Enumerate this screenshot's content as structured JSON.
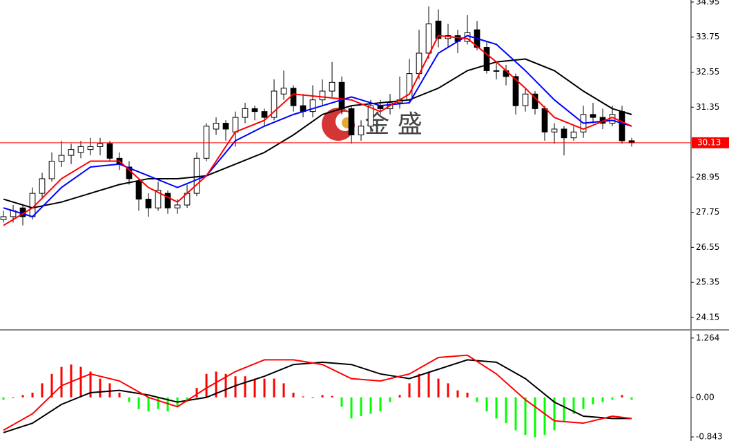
{
  "chart_data": [
    {
      "type": "candlestick",
      "xlim": [
        -0.36,
        71.07
      ],
      "ylim": [
        23.77,
        35.02
      ],
      "yticks": [
        34.95,
        33.75,
        32.55,
        31.35,
        28.95,
        27.75,
        26.55,
        25.35,
        24.15
      ],
      "up_color": "#ffffff",
      "down_color": "#000000",
      "price_line": 30.13,
      "price_line_color": "#ff0000",
      "watermark": "金 盛",
      "open": [
        27.5,
        27.6,
        27.9,
        27.6,
        28.4,
        28.9,
        29.5,
        29.7,
        29.8,
        29.9,
        30.0,
        30.1,
        29.6,
        29.3,
        28.8,
        28.2,
        27.9,
        28.4,
        27.9,
        28.0,
        28.4,
        29.6,
        30.6,
        30.8,
        30.5,
        31.0,
        31.3,
        31.2,
        31.0,
        31.8,
        32.0,
        31.4,
        31.2,
        31.6,
        31.9,
        32.2,
        31.3,
        30.4,
        30.7,
        31.4,
        31.3,
        31.5,
        31.6,
        32.5,
        33.2,
        34.3,
        33.7,
        33.8,
        33.6,
        34.0,
        33.4,
        32.6,
        32.6,
        32.4,
        31.4,
        31.8,
        31.3,
        30.5,
        30.6,
        30.3,
        30.5,
        31.1,
        31.0,
        30.8,
        31.2,
        30.2
      ],
      "high": [
        27.8,
        28.0,
        28.0,
        28.6,
        29.1,
        29.8,
        30.2,
        30.1,
        30.2,
        30.3,
        30.3,
        30.2,
        29.8,
        29.5,
        28.9,
        28.4,
        28.8,
        28.5,
        28.2,
        28.7,
        29.8,
        30.8,
        31.0,
        30.9,
        31.2,
        31.5,
        31.4,
        31.3,
        32.3,
        32.6,
        32.1,
        31.8,
        32.1,
        32.3,
        32.9,
        32.4,
        31.4,
        30.9,
        31.6,
        31.6,
        31.8,
        32.4,
        33.0,
        34.0,
        34.8,
        34.7,
        34.2,
        34.0,
        34.5,
        34.3,
        33.6,
        32.9,
        32.8,
        32.5,
        32.0,
        31.9,
        31.4,
        30.8,
        30.7,
        30.7,
        31.4,
        31.5,
        31.3,
        31.4,
        31.4,
        30.3
      ],
      "low": [
        27.4,
        27.4,
        27.3,
        27.5,
        28.2,
        28.8,
        29.3,
        29.4,
        29.6,
        29.7,
        29.7,
        29.5,
        29.2,
        28.7,
        27.8,
        27.6,
        27.8,
        27.7,
        27.7,
        27.9,
        28.3,
        29.5,
        30.4,
        30.2,
        30.0,
        30.8,
        30.9,
        30.7,
        30.9,
        31.6,
        31.2,
        31.0,
        31.0,
        31.4,
        31.7,
        31.1,
        30.1,
        30.2,
        30.5,
        31.1,
        31.1,
        31.3,
        31.5,
        32.3,
        33.0,
        33.4,
        33.4,
        33.2,
        33.5,
        33.3,
        32.5,
        32.3,
        32.1,
        31.1,
        31.2,
        31.1,
        30.2,
        30.1,
        29.7,
        30.2,
        30.3,
        30.8,
        30.6,
        30.7,
        30.1,
        30.0
      ],
      "close": [
        27.6,
        27.8,
        27.6,
        28.4,
        28.9,
        29.5,
        29.7,
        29.9,
        30.0,
        30.0,
        30.1,
        29.6,
        29.4,
        28.9,
        28.2,
        27.9,
        28.5,
        27.9,
        28.0,
        28.4,
        29.6,
        30.7,
        30.8,
        30.6,
        31.0,
        31.3,
        31.2,
        31.0,
        31.9,
        32.0,
        31.4,
        31.2,
        31.6,
        31.9,
        32.2,
        31.3,
        30.4,
        30.7,
        31.4,
        31.3,
        31.5,
        31.6,
        32.5,
        33.2,
        34.2,
        33.7,
        33.8,
        33.6,
        33.9,
        33.4,
        32.6,
        32.6,
        32.4,
        31.4,
        31.8,
        31.3,
        30.5,
        30.6,
        30.3,
        30.5,
        31.1,
        31.0,
        30.8,
        31.1,
        30.2,
        30.13
      ],
      "series": [
        {
          "color": "#000000",
          "x": [
            0,
            3,
            6,
            9,
            12,
            15,
            18,
            21,
            24,
            27,
            30,
            33,
            36,
            39,
            42,
            45,
            48,
            51,
            54,
            57,
            60,
            63,
            65
          ],
          "values": [
            28.2,
            27.9,
            28.1,
            28.4,
            28.7,
            28.9,
            28.9,
            29.0,
            29.4,
            29.8,
            30.4,
            31.1,
            31.4,
            31.5,
            31.6,
            32.0,
            32.6,
            32.9,
            33.0,
            32.6,
            31.9,
            31.3,
            31.1
          ]
        },
        {
          "color": "#0000ff",
          "x": [
            0,
            3,
            6,
            9,
            12,
            15,
            18,
            21,
            24,
            27,
            30,
            33,
            36,
            39,
            42,
            45,
            48,
            51,
            54,
            57,
            60,
            63,
            65
          ],
          "values": [
            27.9,
            27.6,
            28.6,
            29.3,
            29.4,
            29.0,
            28.6,
            29.0,
            30.2,
            30.7,
            31.1,
            31.4,
            31.7,
            31.4,
            31.5,
            33.2,
            33.8,
            33.5,
            32.6,
            31.6,
            30.8,
            30.9,
            30.7
          ]
        },
        {
          "color": "#ff0000",
          "x": [
            0,
            3,
            6,
            9,
            12,
            15,
            18,
            21,
            24,
            27,
            30,
            33,
            36,
            39,
            42,
            45,
            48,
            51,
            54,
            57,
            60,
            63,
            65
          ],
          "values": [
            27.3,
            27.9,
            28.9,
            29.5,
            29.5,
            28.6,
            28.1,
            29.0,
            30.5,
            30.9,
            31.8,
            31.7,
            31.6,
            31.2,
            31.8,
            33.8,
            33.7,
            32.9,
            32.0,
            31.0,
            30.6,
            31.0,
            30.7
          ]
        }
      ]
    },
    {
      "type": "macd",
      "xlim": [
        -0.36,
        71.07
      ],
      "ylim": [
        -0.93,
        1.38
      ],
      "yticks": [
        1.264,
        {
          "value": 0,
          "label": "0.00"
        },
        -0.843
      ],
      "up_color": "#ff0000",
      "down_color": "#00ff00",
      "values": [
        -0.05,
        0.0,
        0.05,
        0.1,
        0.3,
        0.5,
        0.65,
        0.7,
        0.65,
        0.55,
        0.4,
        0.3,
        0.1,
        -0.1,
        -0.25,
        -0.3,
        -0.25,
        -0.3,
        -0.2,
        -0.1,
        0.2,
        0.5,
        0.55,
        0.5,
        0.45,
        0.45,
        0.4,
        0.4,
        0.4,
        0.3,
        0.1,
        0.02,
        0.0,
        0.05,
        0.03,
        -0.2,
        -0.45,
        -0.4,
        -0.35,
        -0.3,
        -0.1,
        0.05,
        0.3,
        0.5,
        0.55,
        0.4,
        0.3,
        0.15,
        0.1,
        -0.1,
        -0.3,
        -0.45,
        -0.55,
        -0.7,
        -0.8,
        -0.85,
        -0.8,
        -0.7,
        -0.5,
        -0.35,
        -0.25,
        -0.15,
        -0.1,
        -0.05,
        0.05,
        -0.05
      ],
      "series": [
        {
          "color": "#000000",
          "x": [
            0,
            3,
            6,
            9,
            12,
            15,
            18,
            21,
            24,
            27,
            30,
            33,
            36,
            39,
            42,
            45,
            48,
            51,
            54,
            57,
            60,
            63,
            65
          ],
          "values": [
            -0.75,
            -0.55,
            -0.15,
            0.1,
            0.15,
            0.05,
            -0.1,
            0.0,
            0.25,
            0.45,
            0.7,
            0.75,
            0.7,
            0.5,
            0.4,
            0.6,
            0.8,
            0.75,
            0.4,
            -0.1,
            -0.4,
            -0.45,
            -0.45
          ]
        },
        {
          "color": "#ff0000",
          "x": [
            0,
            3,
            6,
            9,
            12,
            15,
            18,
            21,
            24,
            27,
            30,
            33,
            36,
            39,
            42,
            45,
            48,
            51,
            54,
            57,
            60,
            63,
            65
          ],
          "values": [
            -0.7,
            -0.35,
            0.25,
            0.5,
            0.35,
            0.0,
            -0.2,
            0.2,
            0.55,
            0.8,
            0.8,
            0.7,
            0.4,
            0.35,
            0.5,
            0.85,
            0.9,
            0.5,
            -0.05,
            -0.5,
            -0.55,
            -0.4,
            -0.45
          ]
        }
      ]
    }
  ]
}
